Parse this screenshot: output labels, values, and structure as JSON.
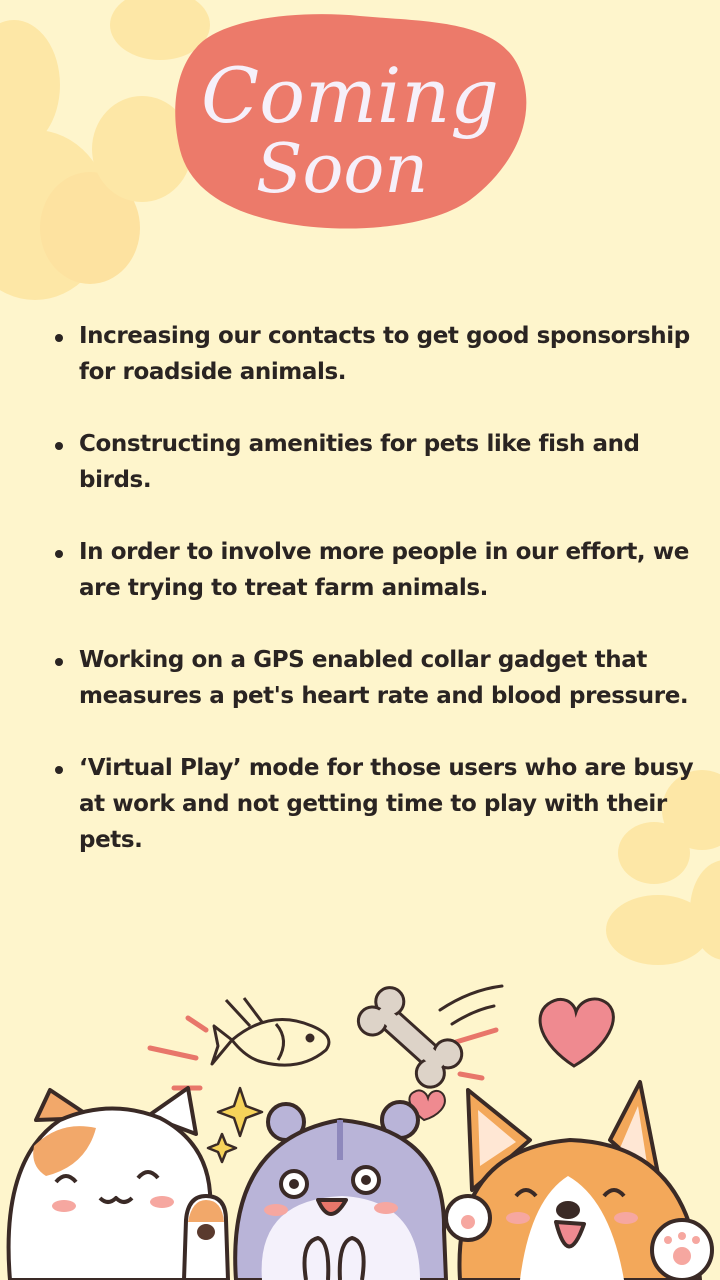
{
  "header": {
    "title_line1": "Coming",
    "title_line2": "Soon"
  },
  "bullets": [
    "Increasing our contacts to get good sponsorship for roadside animals.",
    "Constructing amenities for pets like fish and birds.",
    "In order to involve more people in our effort, we are trying to treat farm animals.",
    "Working on a  GPS enabled collar gadget that measures a pet's heart rate and blood pressure.",
    "‘Virtual Play’ mode for those users who are busy at work and not getting time to play with their pets."
  ],
  "colors": {
    "background": "#fef5cc",
    "paw_prints": "#fde7a6",
    "title_blob": "#ec7a6a",
    "title_text": "#f6f0fa",
    "body_text": "#2a2422",
    "heart": "#ef8a90"
  },
  "illustration": {
    "icons": [
      "cat-icon",
      "hamster-icon",
      "corgi-icon",
      "fish-icon",
      "bone-icon",
      "heart-icon",
      "sparkle-icon",
      "paw-icon"
    ]
  }
}
